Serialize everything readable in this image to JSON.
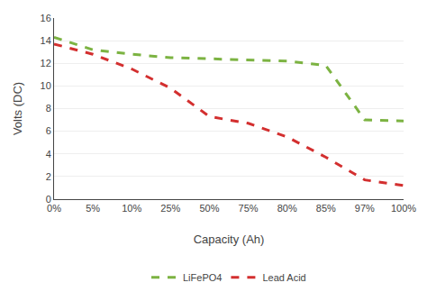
{
  "chart_data": {
    "type": "line",
    "categories": [
      "0%",
      "5%",
      "10%",
      "25%",
      "50%",
      "75%",
      "80%",
      "85%",
      "97%",
      "100%"
    ],
    "series": [
      {
        "name": "LiFePO4",
        "color": "#7CB342",
        "line_style": "dashed",
        "values": [
          14.3,
          13.2,
          12.8,
          12.5,
          12.4,
          12.3,
          12.2,
          11.8,
          7.0,
          6.9
        ]
      },
      {
        "name": "Lead Acid",
        "color": "#D32F2F",
        "line_style": "dashed",
        "values": [
          13.7,
          12.8,
          11.5,
          9.8,
          7.3,
          6.7,
          5.5,
          3.7,
          1.7,
          1.2
        ]
      }
    ],
    "xlabel": "Capacity (Ah)",
    "ylabel": "Volts (DC)",
    "ylim": [
      0,
      16
    ],
    "yticks": [
      0,
      2,
      4,
      6,
      8,
      10,
      12,
      14,
      16
    ],
    "grid": true,
    "legend": "bottom"
  }
}
